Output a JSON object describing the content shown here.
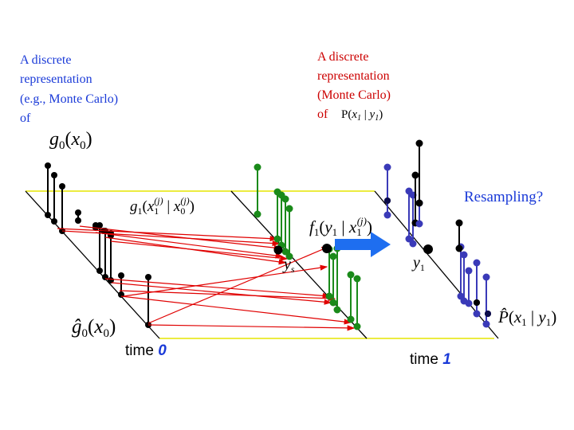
{
  "colors": {
    "black": "#000000",
    "green": "#1a8a1a",
    "blue": "#3a3ab8",
    "navy": "#0d0d4a",
    "red": "#e00000",
    "yellow": "#e6e600",
    "arrow_blue": "#1e6ef0",
    "label_blue": "#1a3ad8",
    "label_red": "#cc0000"
  },
  "text": {
    "left_note": [
      "A discrete",
      "representation",
      "(e.g., Monte Carlo)",
      "of"
    ],
    "right_note": [
      "A discrete",
      "representation",
      "(Monte Carlo)",
      "of"
    ],
    "right_note_formula_P": "P(",
    "right_note_formula_x": "x",
    "right_note_formula_sub1": "1",
    "right_note_formula_bar": " | ",
    "right_note_formula_y": "y",
    "right_note_formula_sub2": "1",
    "right_note_formula_close": ")",
    "g0_g": "g",
    "g0_sub": "0",
    "g0_open": "(",
    "g0_x": "x",
    "g0_xsub": "0",
    "g0_close": ")",
    "g1_g": "g",
    "g1_sub": "1",
    "g1_open": "(",
    "g1_x": "x",
    "g1_xsub": "1",
    "g1_sup": "(j)",
    "g1_bar": " | ",
    "g1_x2": "x",
    "g1_x2sub": "0",
    "g1_sup2": "(j)",
    "g1_close": ")",
    "f1_f": "f",
    "f1_sub": "1",
    "f1_open": "(",
    "f1_y": "y",
    "f1_ysub": "1",
    "f1_bar": " | ",
    "f1_x": "x",
    "f1_xsub": "1",
    "f1_sup": "(j)",
    "f1_close": ")",
    "ys_y": "y",
    "ys_sub": "s",
    "y1_y": "y",
    "y1_sub": "1",
    "ghat_g": "ĝ",
    "ghat_sub": "0",
    "ghat_open": "(",
    "ghat_x": "x",
    "ghat_xsub": "0",
    "ghat_close": ")",
    "phat_P": "P̂",
    "phat_open": "(",
    "phat_x": "x",
    "phat_xsub": "1",
    "phat_bar": " | ",
    "phat_y": "y",
    "phat_ysub": "1",
    "phat_close": ")",
    "resampling": "Resampling?",
    "time0_word": "time ",
    "time0_num": "0",
    "time1_word": "time ",
    "time1_num": "1"
  }
}
